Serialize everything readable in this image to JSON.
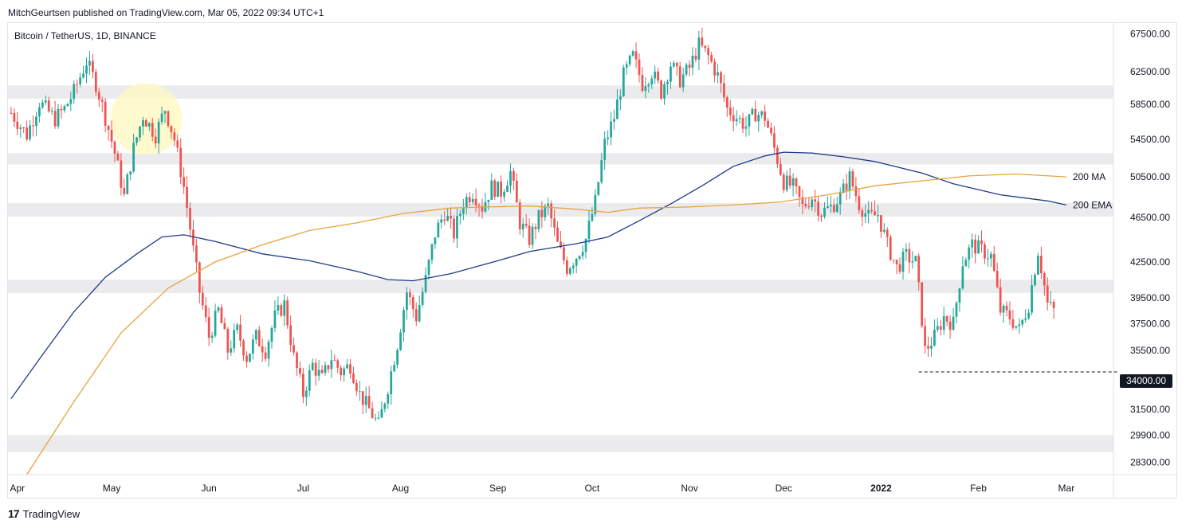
{
  "header": {
    "published_by": "MitchGeurtsen published on TradingView.com, Mar 05, 2022 09:34 UTC+1",
    "symbol": "Bitcoin / TetherUS, 1D, BINANCE"
  },
  "footer": {
    "brand": "TradingView"
  },
  "colors": {
    "up": "#26a69a",
    "down": "#ef5350",
    "ema": "#1e3a8a",
    "ma": "#e8a33d",
    "zone": "#ebebee",
    "highlight": "#fff7c2"
  },
  "chart_data": {
    "type": "candlestick",
    "title": "Bitcoin / TetherUS, 1D, BINANCE",
    "y_scale": "log",
    "ylim": [
      27600,
      69000
    ],
    "y_ticks": [
      67500.0,
      62500.0,
      58500.0,
      54500.0,
      50500.0,
      46500.0,
      42500.0,
      39500.0,
      37500.0,
      35500.0,
      33500.0,
      31500.0,
      29900.0,
      28300.0
    ],
    "y_tick_labels": [
      "67500.00",
      "62500.00",
      "58500.00",
      "54500.00",
      "50500.00",
      "46500.00",
      "42500.00",
      "39500.00",
      "37500.00",
      "35500.00",
      "33500.00",
      "31500.00",
      "29900.00",
      "28300.00"
    ],
    "x_ticks": [
      {
        "label": "Apr",
        "day": 2,
        "bold": false
      },
      {
        "label": "May",
        "day": 32,
        "bold": false
      },
      {
        "label": "Jun",
        "day": 63,
        "bold": false
      },
      {
        "label": "Jul",
        "day": 93,
        "bold": false
      },
      {
        "label": "Aug",
        "day": 124,
        "bold": false
      },
      {
        "label": "Sep",
        "day": 155,
        "bold": false
      },
      {
        "label": "Oct",
        "day": 185,
        "bold": false
      },
      {
        "label": "Nov",
        "day": 216,
        "bold": false
      },
      {
        "label": "Dec",
        "day": 246,
        "bold": false
      },
      {
        "label": "2022",
        "day": 277,
        "bold": true
      },
      {
        "label": "Feb",
        "day": 308,
        "bold": false
      },
      {
        "label": "Mar",
        "day": 336,
        "bold": false
      }
    ],
    "support_zones": [
      [
        59200,
        60800
      ],
      [
        51800,
        53000
      ],
      [
        46600,
        47900
      ],
      [
        39900,
        41000
      ],
      [
        28900,
        29900
      ]
    ],
    "highlight_circle": {
      "day": 43,
      "price": 56800
    },
    "horizontal_line": {
      "price": 34000,
      "from_day": 289,
      "label": "34000.00"
    },
    "indicators": [
      {
        "name": "200 EMA",
        "label": "200 EMA",
        "color": "#1e3a8a",
        "points": [
          [
            0,
            32200
          ],
          [
            10,
            35200
          ],
          [
            20,
            38400
          ],
          [
            30,
            41200
          ],
          [
            40,
            43200
          ],
          [
            48,
            44700
          ],
          [
            55,
            44900
          ],
          [
            65,
            44300
          ],
          [
            80,
            43200
          ],
          [
            95,
            42600
          ],
          [
            110,
            41700
          ],
          [
            120,
            41000
          ],
          [
            128,
            40900
          ],
          [
            140,
            41500
          ],
          [
            155,
            42600
          ],
          [
            165,
            43400
          ],
          [
            180,
            44100
          ],
          [
            190,
            44700
          ],
          [
            200,
            46200
          ],
          [
            210,
            47800
          ],
          [
            220,
            49600
          ],
          [
            230,
            51600
          ],
          [
            240,
            52700
          ],
          [
            246,
            53100
          ],
          [
            255,
            53000
          ],
          [
            265,
            52600
          ],
          [
            275,
            52100
          ],
          [
            290,
            50900
          ],
          [
            300,
            49800
          ],
          [
            315,
            48700
          ],
          [
            330,
            48100
          ],
          [
            336,
            47700
          ]
        ]
      },
      {
        "name": "200 MA",
        "label": "200 MA",
        "color": "#e8a33d",
        "points": [
          [
            5,
            27600
          ],
          [
            20,
            32000
          ],
          [
            35,
            36800
          ],
          [
            50,
            40300
          ],
          [
            65,
            42500
          ],
          [
            80,
            44000
          ],
          [
            95,
            45300
          ],
          [
            110,
            46000
          ],
          [
            125,
            46900
          ],
          [
            140,
            47400
          ],
          [
            150,
            47500
          ],
          [
            165,
            47600
          ],
          [
            180,
            47300
          ],
          [
            190,
            47000
          ],
          [
            200,
            47400
          ],
          [
            215,
            47500
          ],
          [
            230,
            47700
          ],
          [
            245,
            48000
          ],
          [
            260,
            48700
          ],
          [
            275,
            49600
          ],
          [
            290,
            50100
          ],
          [
            305,
            50600
          ],
          [
            320,
            50800
          ],
          [
            336,
            50500
          ]
        ]
      }
    ],
    "anchors": [
      [
        0,
        57500
      ],
      [
        5,
        55000
      ],
      [
        9,
        58800
      ],
      [
        14,
        56800
      ],
      [
        17,
        58000
      ],
      [
        20,
        60000
      ],
      [
        24,
        63800
      ],
      [
        27,
        61000
      ],
      [
        30,
        57000
      ],
      [
        33,
        53000
      ],
      [
        36,
        48500
      ],
      [
        39,
        53500
      ],
      [
        42,
        57200
      ],
      [
        46,
        55000
      ],
      [
        49,
        58000
      ],
      [
        52,
        54500
      ],
      [
        55,
        49500
      ],
      [
        58,
        43500
      ],
      [
        60,
        40000
      ],
      [
        63,
        36500
      ],
      [
        66,
        38500
      ],
      [
        69,
        35500
      ],
      [
        72,
        37000
      ],
      [
        75,
        35000
      ],
      [
        78,
        36500
      ],
      [
        81,
        35500
      ],
      [
        84,
        38000
      ],
      [
        87,
        39000
      ],
      [
        90,
        35000
      ],
      [
        93,
        32500
      ],
      [
        96,
        34500
      ],
      [
        99,
        33500
      ],
      [
        102,
        35000
      ],
      [
        105,
        34000
      ],
      [
        108,
        34500
      ],
      [
        111,
        32500
      ],
      [
        114,
        31500
      ],
      [
        117,
        30500
      ],
      [
        120,
        33000
      ],
      [
        123,
        36000
      ],
      [
        126,
        40000
      ],
      [
        129,
        38000
      ],
      [
        132,
        41000
      ],
      [
        135,
        45000
      ],
      [
        138,
        47000
      ],
      [
        141,
        45000
      ],
      [
        144,
        48000
      ],
      [
        147,
        49000
      ],
      [
        150,
        47500
      ],
      [
        153,
        49500
      ],
      [
        156,
        49000
      ],
      [
        159,
        51000
      ],
      [
        162,
        46000
      ],
      [
        165,
        44500
      ],
      [
        168,
        46500
      ],
      [
        171,
        47500
      ],
      [
        174,
        44000
      ],
      [
        177,
        42000
      ],
      [
        180,
        43000
      ],
      [
        183,
        44500
      ],
      [
        186,
        48000
      ],
      [
        189,
        54000
      ],
      [
        192,
        57000
      ],
      [
        195,
        62000
      ],
      [
        198,
        64500
      ],
      [
        201,
        61000
      ],
      [
        204,
        62500
      ],
      [
        207,
        60000
      ],
      [
        210,
        63500
      ],
      [
        213,
        61500
      ],
      [
        216,
        63000
      ],
      [
        219,
        66000
      ],
      [
        222,
        64500
      ],
      [
        225,
        62000
      ],
      [
        228,
        58000
      ],
      [
        231,
        57000
      ],
      [
        234,
        56000
      ],
      [
        237,
        57500
      ],
      [
        240,
        57000
      ],
      [
        243,
        53500
      ],
      [
        246,
        50000
      ],
      [
        249,
        49500
      ],
      [
        252,
        47500
      ],
      [
        255,
        48500
      ],
      [
        258,
        47000
      ],
      [
        261,
        47500
      ],
      [
        264,
        48500
      ],
      [
        267,
        50500
      ],
      [
        270,
        47800
      ],
      [
        273,
        46500
      ],
      [
        276,
        46800
      ],
      [
        279,
        44000
      ],
      [
        282,
        42000
      ],
      [
        285,
        43000
      ],
      [
        288,
        42500
      ],
      [
        291,
        35500
      ],
      [
        294,
        36500
      ],
      [
        297,
        38000
      ],
      [
        300,
        37500
      ],
      [
        303,
        42500
      ],
      [
        306,
        44000
      ],
      [
        309,
        43500
      ],
      [
        312,
        43000
      ],
      [
        315,
        38500
      ],
      [
        318,
        38000
      ],
      [
        321,
        37000
      ],
      [
        324,
        39000
      ],
      [
        327,
        43500
      ],
      [
        330,
        39000
      ],
      [
        332,
        38500
      ]
    ],
    "n_days": 333,
    "x_range": [
      -1,
      351
    ]
  }
}
